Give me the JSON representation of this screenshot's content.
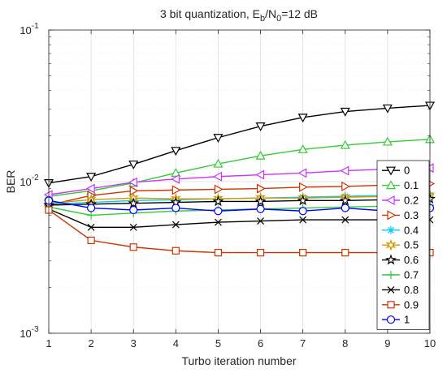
{
  "chart_data": {
    "type": "line",
    "title": {
      "main": "3 bit quantization, E",
      "sub1": "b",
      "mid": "/N",
      "sub2": "0",
      "tail": "=12 dB"
    },
    "xlabel": "Turbo iteration number",
    "ylabel": "BER",
    "x": [
      1,
      2,
      3,
      4,
      5,
      6,
      7,
      8,
      9,
      10
    ],
    "xlim": [
      1,
      10
    ],
    "ylim": [
      0.001,
      0.1
    ],
    "yscale": "log",
    "grid": true,
    "legend_position": "right",
    "xticks": [
      "1",
      "2",
      "3",
      "4",
      "5",
      "6",
      "7",
      "8",
      "9",
      "10"
    ],
    "yticks": [
      {
        "base": "10",
        "exp": "-3"
      },
      {
        "base": "10",
        "exp": "-2"
      },
      {
        "base": "10",
        "exp": "-1"
      }
    ],
    "series": [
      {
        "name": "0",
        "color": "#000000",
        "marker": "triangle-down",
        "values": [
          0.0098,
          0.0108,
          0.013,
          0.016,
          0.0195,
          0.0232,
          0.0265,
          0.029,
          0.0305,
          0.0318
        ]
      },
      {
        "name": "0.1",
        "color": "#33cc33",
        "marker": "triangle-up",
        "values": [
          0.008,
          0.0087,
          0.0098,
          0.0114,
          0.0131,
          0.0148,
          0.0163,
          0.0174,
          0.0183,
          0.019
        ]
      },
      {
        "name": "0.2",
        "color": "#cc33ff",
        "marker": "triangle-left",
        "values": [
          0.0082,
          0.009,
          0.0099,
          0.0104,
          0.0108,
          0.0111,
          0.0114,
          0.0118,
          0.0121,
          0.0123
        ]
      },
      {
        "name": "0.3",
        "color": "#cc3300",
        "marker": "triangle-right",
        "values": [
          0.007,
          0.0081,
          0.0087,
          0.0088,
          0.0089,
          0.009,
          0.0092,
          0.0093,
          0.0095,
          0.0097
        ]
      },
      {
        "name": "0.4",
        "color": "#00ccff",
        "marker": "asterisk",
        "values": [
          0.0071,
          0.0073,
          0.0075,
          0.0076,
          0.0077,
          0.0078,
          0.0079,
          0.008,
          0.0081,
          0.0082
        ]
      },
      {
        "name": "0.5",
        "color": "#cc9900",
        "marker": "hexagram",
        "values": [
          0.0072,
          0.0076,
          0.0078,
          0.0077,
          0.0077,
          0.0078,
          0.0078,
          0.0079,
          0.008,
          0.0081
        ]
      },
      {
        "name": "0.6",
        "color": "#000000",
        "marker": "pentagram",
        "values": [
          0.007,
          0.0071,
          0.0072,
          0.0073,
          0.0074,
          0.0074,
          0.0075,
          0.0075,
          0.0076,
          0.0077
        ]
      },
      {
        "name": "0.7",
        "color": "#33cc33",
        "marker": "plus",
        "values": [
          0.0068,
          0.006,
          0.0062,
          0.0064,
          0.0065,
          0.0066,
          0.0067,
          0.0068,
          0.0069,
          0.007
        ]
      },
      {
        "name": "0.8",
        "color": "#000000",
        "marker": "x",
        "values": [
          0.0066,
          0.005,
          0.005,
          0.0052,
          0.0054,
          0.0055,
          0.0056,
          0.0056,
          0.0056,
          0.0056
        ]
      },
      {
        "name": "0.9",
        "color": "#cc3300",
        "marker": "square",
        "values": [
          0.0065,
          0.0041,
          0.0037,
          0.0035,
          0.0034,
          0.0034,
          0.0034,
          0.0034,
          0.0034,
          0.0034
        ]
      },
      {
        "name": "1",
        "color": "#0000ff",
        "marker": "circle",
        "values": [
          0.0075,
          0.0067,
          0.0065,
          0.0067,
          0.0064,
          0.0066,
          0.0064,
          0.0067,
          0.0064,
          0.0067
        ]
      }
    ]
  }
}
